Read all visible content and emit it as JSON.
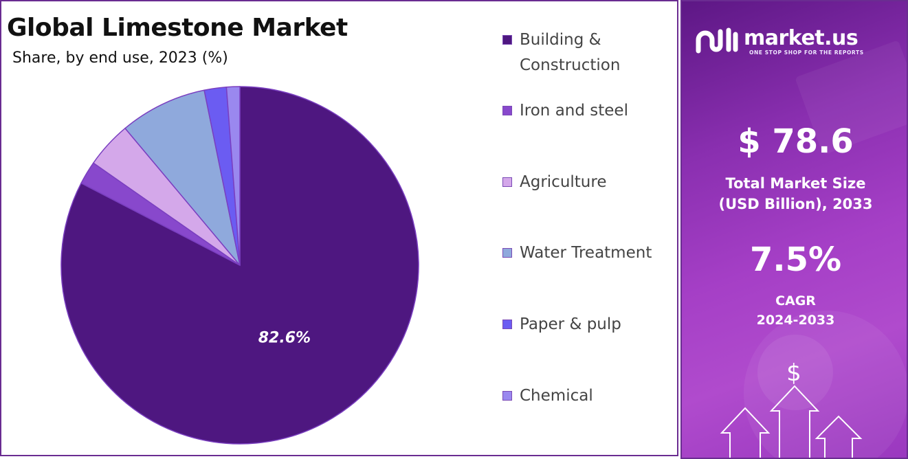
{
  "chart_data": {
    "type": "pie",
    "title": "Global Limestone Market",
    "subtitle": "Share, by end use, 2023 (%)",
    "slices": [
      {
        "name": "Building & Construction",
        "value": 82.6,
        "color": "#4e1780",
        "label": "82.6%"
      },
      {
        "name": "Iron and steel",
        "value": 2.1,
        "color": "#8848cc",
        "label": ""
      },
      {
        "name": "Agriculture",
        "value": 4.2,
        "color": "#d4a8ea",
        "label": ""
      },
      {
        "name": "Water Treatment",
        "value": 7.9,
        "color": "#8fa9dc",
        "label": ""
      },
      {
        "name": "Paper & pulp",
        "value": 2.0,
        "color": "#6b5cf2",
        "label": ""
      },
      {
        "name": "Chemical",
        "value": 1.2,
        "color": "#9a88ef",
        "label": ""
      }
    ],
    "legend_position": "right"
  },
  "legend": {
    "items": [
      {
        "lines": [
          "Building &",
          "Construction"
        ],
        "color": "#4e1780"
      },
      {
        "lines": [
          "Iron and steel"
        ],
        "color": "#8848cc"
      },
      {
        "lines": [
          "Agriculture"
        ],
        "color": "#d4a8ea"
      },
      {
        "lines": [
          "Water Treatment"
        ],
        "color": "#8fa9dc"
      },
      {
        "lines": [
          "Paper & pulp"
        ],
        "color": "#6b5cf2"
      },
      {
        "lines": [
          "Chemical"
        ],
        "color": "#9a88ef"
      }
    ]
  },
  "info": {
    "brand_name": "market.us",
    "brand_tagline": "ONE STOP SHOP FOR THE REPORTS",
    "market_size_value": "$ 78.6",
    "market_size_label_line1": "Total Market Size",
    "market_size_label_line2": "(USD Billion), 2033",
    "cagr_value": "7.5%",
    "cagr_label_line1": "CAGR",
    "cagr_label_line2": "2024-2033",
    "dollar_glyph": "$"
  }
}
